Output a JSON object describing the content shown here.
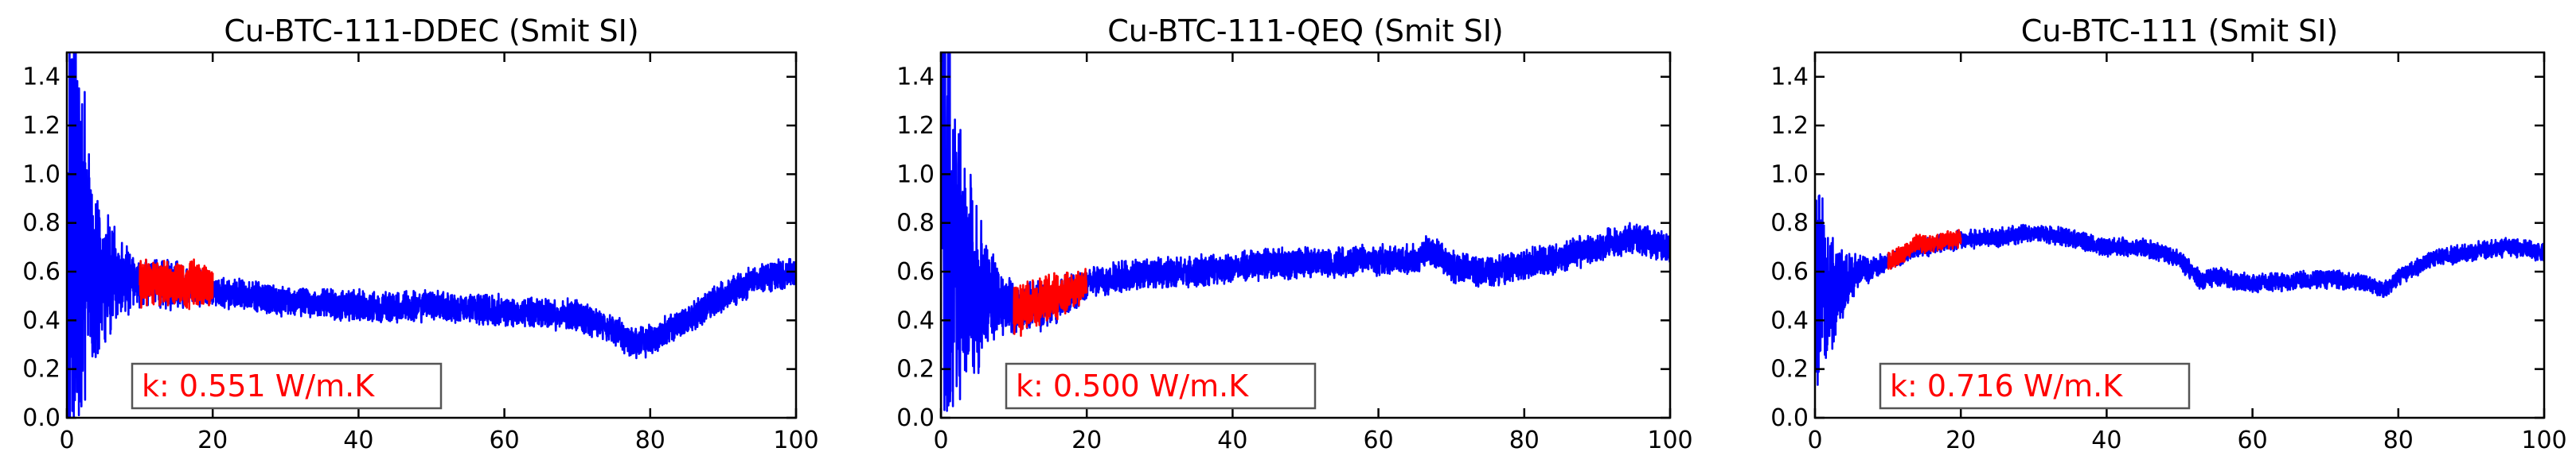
{
  "chart_data": [
    {
      "type": "line",
      "title": "Cu-BTC-111-DDEC (Smit SI)",
      "xlim": [
        0,
        100
      ],
      "ylim": [
        0.0,
        1.5
      ],
      "xticks": [
        "0",
        "20",
        "40",
        "60",
        "80",
        "100"
      ],
      "yticks": [
        "0.0",
        "0.2",
        "0.4",
        "0.6",
        "0.8",
        "1.0",
        "1.2",
        "1.4"
      ],
      "annotation": "k: 0.551 W/m.K",
      "annotation_color": "#ff0000",
      "fit_window": [
        10,
        20
      ],
      "series": [
        {
          "color": "#0000ff",
          "x": [
            0,
            2,
            4,
            6,
            8,
            10,
            15,
            20,
            25,
            30,
            35,
            40,
            45,
            50,
            55,
            60,
            65,
            70,
            75,
            78,
            80,
            85,
            90,
            95,
            100
          ],
          "y": [
            0.75,
            0.7,
            0.62,
            0.58,
            0.56,
            0.55,
            0.55,
            0.52,
            0.5,
            0.48,
            0.47,
            0.46,
            0.45,
            0.46,
            0.45,
            0.44,
            0.43,
            0.42,
            0.36,
            0.3,
            0.32,
            0.4,
            0.5,
            0.57,
            0.6
          ],
          "amplitude": [
            0.75,
            0.55,
            0.3,
            0.18,
            0.12,
            0.08,
            0.08,
            0.05,
            0.05,
            0.05,
            0.05,
            0.05,
            0.05,
            0.05,
            0.05,
            0.05,
            0.05,
            0.05,
            0.05,
            0.05,
            0.05,
            0.05,
            0.05,
            0.05,
            0.05
          ]
        },
        {
          "color": "#ff0000",
          "x": [
            10,
            12,
            14,
            16,
            18,
            20
          ],
          "y": [
            0.55,
            0.56,
            0.55,
            0.54,
            0.55,
            0.54
          ],
          "amplitude": [
            0.08,
            0.08,
            0.08,
            0.08,
            0.08,
            0.06
          ]
        }
      ]
    },
    {
      "type": "line",
      "title": "Cu-BTC-111-QEQ (Smit SI)",
      "xlim": [
        0,
        100
      ],
      "ylim": [
        0.0,
        1.5
      ],
      "xticks": [
        "0",
        "20",
        "40",
        "60",
        "80",
        "100"
      ],
      "yticks": [
        "0.0",
        "0.2",
        "0.4",
        "0.6",
        "0.8",
        "1.0",
        "1.2",
        "1.4"
      ],
      "annotation": "k: 0.500 W/m.K",
      "annotation_color": "#ff0000",
      "fit_window": [
        10,
        20
      ],
      "series": [
        {
          "color": "#0000ff",
          "x": [
            0,
            2,
            4,
            6,
            8,
            10,
            15,
            20,
            25,
            30,
            35,
            40,
            45,
            50,
            55,
            60,
            65,
            67,
            70,
            75,
            80,
            85,
            90,
            95,
            100
          ],
          "y": [
            0.85,
            0.7,
            0.58,
            0.5,
            0.47,
            0.45,
            0.47,
            0.55,
            0.58,
            0.6,
            0.6,
            0.62,
            0.63,
            0.64,
            0.64,
            0.65,
            0.65,
            0.7,
            0.62,
            0.6,
            0.63,
            0.66,
            0.7,
            0.74,
            0.7
          ],
          "amplitude": [
            0.8,
            0.6,
            0.35,
            0.2,
            0.12,
            0.08,
            0.08,
            0.05,
            0.05,
            0.05,
            0.05,
            0.05,
            0.05,
            0.05,
            0.05,
            0.05,
            0.05,
            0.05,
            0.05,
            0.05,
            0.05,
            0.05,
            0.05,
            0.05,
            0.05
          ]
        },
        {
          "color": "#ff0000",
          "x": [
            10,
            12,
            14,
            16,
            18,
            20
          ],
          "y": [
            0.45,
            0.46,
            0.48,
            0.5,
            0.52,
            0.55
          ],
          "amplitude": [
            0.09,
            0.09,
            0.08,
            0.07,
            0.06,
            0.05
          ]
        }
      ]
    },
    {
      "type": "line",
      "title": "Cu-BTC-111 (Smit SI)",
      "xlim": [
        0,
        100
      ],
      "ylim": [
        0.0,
        1.5
      ],
      "xticks": [
        "0",
        "20",
        "40",
        "60",
        "80",
        "100"
      ],
      "yticks": [
        "0.0",
        "0.2",
        "0.4",
        "0.6",
        "0.8",
        "1.0",
        "1.2",
        "1.4"
      ],
      "annotation": "k: 0.716 W/m.K",
      "annotation_color": "#ff0000",
      "fit_window": [
        10,
        20
      ],
      "series": [
        {
          "color": "#0000ff",
          "x": [
            0,
            1,
            2,
            4,
            6,
            8,
            10,
            15,
            20,
            25,
            30,
            35,
            40,
            45,
            50,
            53,
            55,
            60,
            65,
            70,
            75,
            78,
            80,
            85,
            90,
            95,
            100
          ],
          "y": [
            0.55,
            0.5,
            0.5,
            0.55,
            0.6,
            0.62,
            0.64,
            0.7,
            0.73,
            0.74,
            0.76,
            0.74,
            0.7,
            0.7,
            0.65,
            0.56,
            0.58,
            0.55,
            0.56,
            0.57,
            0.56,
            0.52,
            0.58,
            0.66,
            0.68,
            0.7,
            0.68
          ],
          "amplitude": [
            0.4,
            0.3,
            0.2,
            0.1,
            0.06,
            0.04,
            0.03,
            0.03,
            0.03,
            0.03,
            0.03,
            0.03,
            0.03,
            0.03,
            0.03,
            0.03,
            0.03,
            0.03,
            0.03,
            0.03,
            0.03,
            0.03,
            0.03,
            0.03,
            0.03,
            0.03,
            0.03
          ]
        },
        {
          "color": "#ff0000",
          "x": [
            10,
            12,
            14,
            16,
            18,
            20
          ],
          "y": [
            0.64,
            0.67,
            0.72,
            0.71,
            0.73,
            0.74
          ],
          "amplitude": [
            0.03,
            0.03,
            0.03,
            0.03,
            0.03,
            0.03
          ]
        }
      ]
    }
  ]
}
